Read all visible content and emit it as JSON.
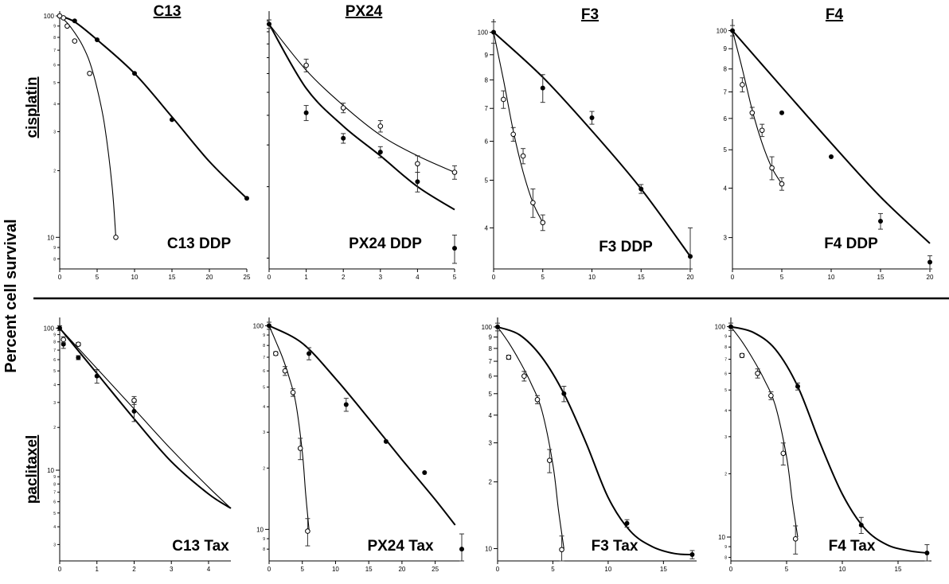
{
  "labels": {
    "columns": [
      "C13",
      "PX24",
      "F3",
      "F4"
    ],
    "rows": [
      "cisplatin",
      "paclitaxel"
    ],
    "y_title": "Percent cell survival"
  },
  "chart_data": [
    {
      "id": "c13-ddp",
      "type": "scatter",
      "title": "C13 DDP",
      "log_y": true,
      "ylim": [
        7.2,
        100
      ],
      "xlim": [
        0,
        25
      ],
      "xticks": [
        0,
        5,
        10,
        15,
        20,
        25
      ],
      "yticks": [
        10,
        100
      ],
      "yminor": [
        8,
        9,
        20,
        30,
        40,
        50,
        60,
        70,
        80,
        90
      ],
      "series": [
        {
          "marker": "filled",
          "x": [
            0,
            2,
            5,
            10,
            15,
            25
          ],
          "y": [
            100,
            95,
            78,
            55,
            34,
            15
          ],
          "fit": {
            "x": [
              0,
              2,
              5,
              10,
              15,
              20,
              25
            ],
            "y": [
              100,
              94,
              78,
              55,
              35,
              22,
              15
            ]
          }
        },
        {
          "marker": "open",
          "x": [
            0,
            0.5,
            1,
            2,
            4,
            7.5
          ],
          "y": [
            100,
            98,
            90,
            77,
            55,
            10
          ],
          "fit": {
            "x": [
              0,
              1,
              2,
              3,
              4,
              5,
              6,
              7,
              7.5
            ],
            "y": [
              100,
              93,
              84,
              74,
              62,
              47,
              32,
              17,
              10
            ]
          }
        }
      ]
    },
    {
      "id": "px24-ddp",
      "type": "scatter",
      "title": "PX24 DDP",
      "log_y": true,
      "ylim": [
        9,
        105
      ],
      "xlim": [
        0,
        5
      ],
      "xticks": [
        0,
        1,
        2,
        3,
        4,
        5
      ],
      "yticks": [],
      "yminor": [
        10,
        20,
        30,
        40,
        50,
        60,
        70,
        80,
        90,
        100
      ],
      "series": [
        {
          "marker": "filled",
          "x": [
            0,
            1,
            2,
            3,
            4,
            5
          ],
          "y": [
            97,
            41,
            32,
            28,
            21,
            11
          ],
          "err": [
            4,
            3,
            1.5,
            1.5,
            2,
            1.5
          ],
          "fit": {
            "x": [
              0,
              1,
              2,
              3,
              4,
              5
            ],
            "y": [
              97,
              52,
              36,
              27,
              20,
              16
            ]
          }
        },
        {
          "marker": "open",
          "x": [
            1,
            2,
            3,
            4,
            5
          ],
          "y": [
            65,
            43,
            36,
            25,
            23
          ],
          "err": [
            4,
            2,
            2,
            2,
            1.5
          ],
          "fit": {
            "x": [
              0,
              1,
              2,
              3,
              4,
              5
            ],
            "y": [
              97,
              62,
              44,
              33,
              27,
              23
            ]
          }
        }
      ]
    },
    {
      "id": "f3-ddp",
      "type": "scatter",
      "title": "F3 DDP",
      "log_y": true,
      "ylim": [
        33,
        104
      ],
      "xlim": [
        0,
        20
      ],
      "xticks": [
        0,
        5,
        10,
        15,
        20
      ],
      "yticks": [
        40,
        50,
        60,
        70,
        80,
        90,
        100
      ],
      "tick_labels": [
        "4",
        "5",
        "6",
        "7",
        "8",
        "9",
        "100"
      ],
      "series": [
        {
          "marker": "filled",
          "x": [
            0,
            5,
            10,
            15,
            20
          ],
          "y": [
            100,
            77,
            67,
            48,
            35
          ],
          "err": [
            5,
            5,
            2,
            1,
            5
          ],
          "fit": {
            "x": [
              0,
              5,
              10,
              15,
              20
            ],
            "y": [
              100,
              81,
              63,
              48,
              35
            ]
          }
        },
        {
          "marker": "open",
          "x": [
            1,
            2,
            3,
            4,
            5
          ],
          "y": [
            73,
            62,
            56,
            45,
            41
          ],
          "err": [
            3,
            2,
            2,
            3,
            1.5
          ],
          "fit": {
            "x": [
              0,
              1,
              2,
              3,
              4,
              5
            ],
            "y": [
              100,
              80,
              63,
              52,
              45,
              41
            ]
          }
        }
      ]
    },
    {
      "id": "f4-ddp",
      "type": "scatter",
      "title": "F4 DDP",
      "log_y": true,
      "ylim": [
        25,
        104
      ],
      "xlim": [
        0,
        20
      ],
      "xticks": [
        0,
        5,
        10,
        15,
        20
      ],
      "yticks": [
        30,
        40,
        50,
        60,
        70,
        80,
        90,
        100
      ],
      "tick_labels": [
        "3",
        "4",
        "5",
        "6",
        "7",
        "8",
        "9",
        "100"
      ],
      "series": [
        {
          "marker": "filled",
          "x": [
            0,
            5,
            10,
            15,
            20
          ],
          "y": [
            100,
            62,
            48,
            33,
            26
          ],
          "err": [
            3,
            0,
            0,
            1.5,
            1
          ],
          "fit": {
            "x": [
              0,
              5,
              10,
              15,
              20
            ],
            "y": [
              100,
              72,
              52,
              38,
              29
            ]
          }
        },
        {
          "marker": "open",
          "x": [
            1,
            2,
            3,
            4,
            5
          ],
          "y": [
            73,
            62,
            56,
            45,
            41
          ],
          "err": [
            3,
            2,
            2,
            3,
            1.5
          ],
          "fit": {
            "x": [
              0,
              1,
              2,
              3,
              4,
              5
            ],
            "y": [
              100,
              80,
              63,
              52,
              45,
              41
            ]
          }
        }
      ]
    },
    {
      "id": "c13-tax",
      "type": "scatter",
      "title": "C13 Tax",
      "log_y": true,
      "ylim": [
        2.3,
        110
      ],
      "xlim": [
        0,
        4.6
      ],
      "xticks": [
        0,
        1,
        2,
        3,
        4
      ],
      "yticks": [
        10,
        100
      ],
      "yminor": [
        3,
        4,
        5,
        6,
        7,
        8,
        9,
        20,
        30,
        40,
        50,
        60,
        70,
        80,
        90
      ],
      "series": [
        {
          "marker": "filled",
          "x": [
            0,
            0.1,
            0.5,
            1,
            2
          ],
          "y": [
            100,
            77,
            62,
            46,
            26
          ],
          "err": [
            4,
            5,
            2,
            5,
            4
          ],
          "fit": {
            "x": [
              0,
              1,
              2,
              3,
              4,
              4.6
            ],
            "y": [
              100,
              48,
              23,
              11.5,
              6.8,
              5.4
            ]
          }
        },
        {
          "marker": "open",
          "x": [
            0.1,
            0.5,
            2
          ],
          "y": [
            83,
            77,
            31
          ],
          "err": [
            4,
            2,
            2
          ],
          "fit": {
            "x": [
              0,
              1,
              2,
              3,
              4,
              4.6
            ],
            "y": [
              100,
              52,
              27,
              14,
              7.6,
              5.4
            ]
          }
        }
      ]
    },
    {
      "id": "px24-tax",
      "type": "scatter",
      "title": "PX24 Tax",
      "log_y": true,
      "ylim": [
        7,
        104
      ],
      "xlim": [
        0,
        29
      ],
      "xticks": [
        0,
        5,
        10,
        15,
        20,
        25
      ],
      "yticks": [
        10,
        100
      ],
      "yminor": [
        8,
        9,
        20,
        30,
        40,
        50,
        60,
        70,
        80,
        90
      ],
      "series": [
        {
          "marker": "filled",
          "x": [
            0,
            6,
            11.6,
            17.6,
            23.4,
            29
          ],
          "y": [
            100,
            73,
            41,
            27,
            19,
            8
          ],
          "err": [
            4,
            5,
            3,
            0,
            0,
            1.5
          ],
          "fit": {
            "x": [
              0,
              5,
              10,
              15,
              20,
              25,
              28
            ],
            "y": [
              100,
              82,
              55,
              35,
              22,
              14,
              10.5
            ]
          }
        },
        {
          "marker": "open",
          "x": [
            1,
            2.4,
            3.6,
            4.7,
            5.8
          ],
          "y": [
            73,
            60,
            47,
            25,
            9.8
          ],
          "err": [
            1.5,
            3,
            2,
            3,
            1.5
          ],
          "fit": {
            "x": [
              0,
              1,
              2,
              3,
              4,
              5,
              5.5,
              6
            ],
            "y": [
              100,
              84,
              70,
              56,
              42,
              24,
              15,
              10
            ]
          }
        }
      ]
    },
    {
      "id": "f3-tax",
      "type": "scatter",
      "title": "F3 Tax",
      "log_y": true,
      "ylim": [
        8.8,
        105
      ],
      "xlim": [
        0,
        18
      ],
      "xticks": [
        0,
        5,
        10,
        15
      ],
      "yticks": [
        10,
        20,
        30,
        40,
        50,
        60,
        70,
        80,
        90,
        100
      ],
      "tick_labels": [
        "10",
        "2",
        "3",
        "4",
        "5",
        "6",
        "7",
        "8",
        "9",
        "100"
      ],
      "series": [
        {
          "marker": "filled",
          "x": [
            0,
            6,
            11.7,
            17.6
          ],
          "y": [
            100,
            50,
            13,
            9.4
          ],
          "err": [
            4,
            4,
            0.5,
            0.4
          ],
          "fit": {
            "x": [
              0,
              2,
              4,
              6,
              8,
              10,
              12,
              14,
              16,
              17.6
            ],
            "y": [
              100,
              92,
              73,
              50,
              30,
              17,
              12,
              10.2,
              9.5,
              9.4
            ]
          }
        },
        {
          "marker": "open",
          "x": [
            1,
            2.4,
            3.6,
            4.7,
            5.8
          ],
          "y": [
            73,
            60,
            47,
            25,
            9.9
          ],
          "err": [
            1.5,
            3,
            2,
            3,
            1.5
          ],
          "fit": {
            "x": [
              0,
              1,
              2,
              3,
              4,
              5,
              5.5,
              6
            ],
            "y": [
              100,
              85,
              70,
              56,
              42,
              24,
              15,
              10
            ]
          }
        }
      ]
    },
    {
      "id": "f4-tax",
      "type": "scatter",
      "title": "F4 Tax",
      "log_y": true,
      "ylim": [
        7.7,
        105
      ],
      "xlim": [
        0,
        18
      ],
      "xticks": [
        0,
        5,
        10,
        15
      ],
      "yticks": [
        10,
        100
      ],
      "yminor": [
        8,
        9,
        20,
        30,
        40,
        50,
        60,
        70,
        80,
        90
      ],
      "series": [
        {
          "marker": "filled",
          "x": [
            0,
            6,
            11.7,
            17.6
          ],
          "y": [
            100,
            52,
            11.4,
            8.4
          ],
          "err": [
            4,
            2,
            1,
            0.8
          ],
          "fit": {
            "x": [
              0,
              2,
              4,
              6,
              8,
              10,
              12,
              14,
              16,
              17.6
            ],
            "y": [
              100,
              94,
              78,
              52,
              28,
              16,
              11,
              9.2,
              8.6,
              8.4
            ]
          }
        },
        {
          "marker": "open",
          "x": [
            1,
            2.4,
            3.6,
            4.7,
            5.8
          ],
          "y": [
            73,
            60,
            47,
            25,
            9.8
          ],
          "err": [
            1.5,
            3,
            2,
            3,
            1.5
          ],
          "fit": {
            "x": [
              0,
              1,
              2,
              3,
              4,
              5,
              5.5,
              6
            ],
            "y": [
              100,
              85,
              70,
              56,
              42,
              24,
              15,
              10
            ]
          }
        }
      ]
    }
  ]
}
